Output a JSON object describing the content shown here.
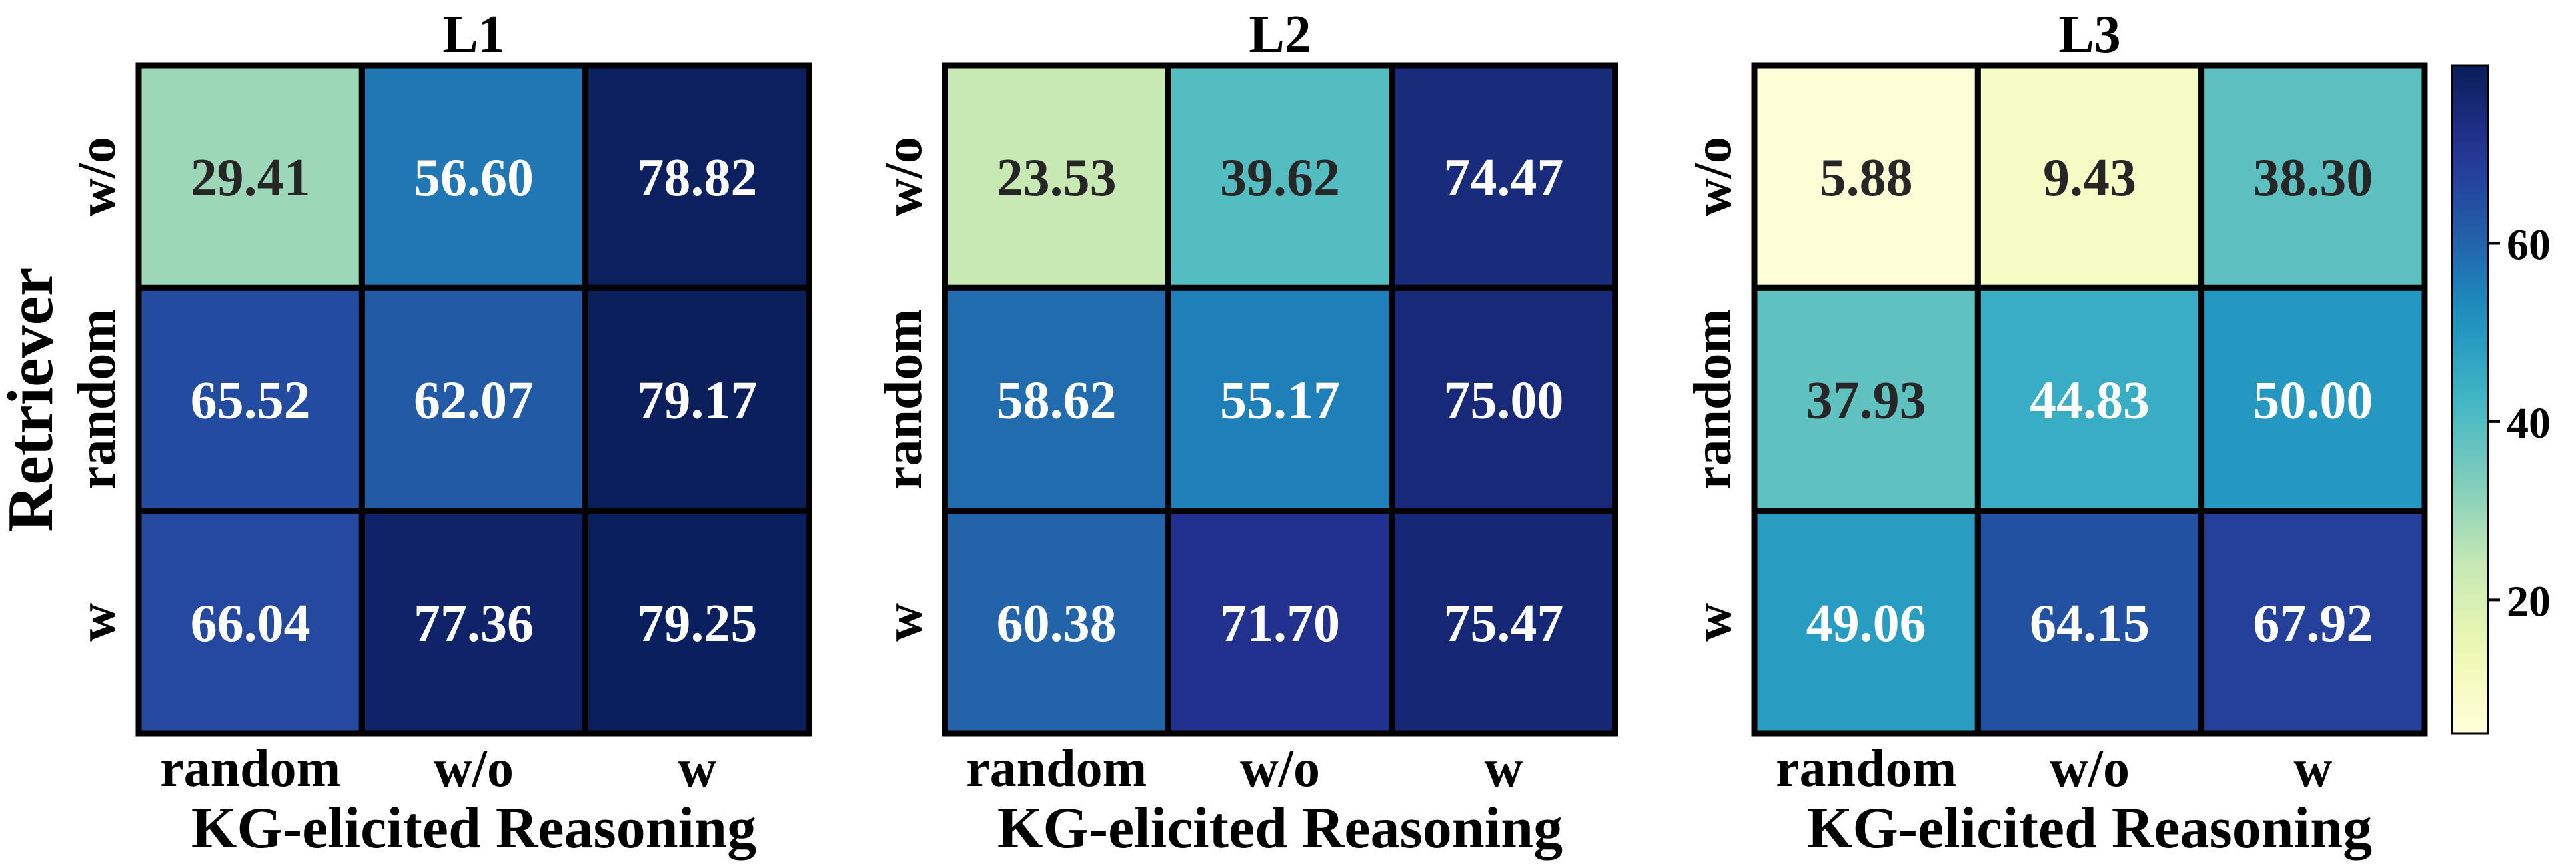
{
  "chart_data": {
    "type": "heatmap",
    "shared_ylabel": "Retriever",
    "colormap": "YlGnBu",
    "colorbar": {
      "range": [
        5,
        80
      ],
      "ticks": [
        20,
        40,
        60
      ],
      "tick_labels": [
        "20",
        "40",
        "60"
      ]
    },
    "panels": [
      {
        "title": "L1",
        "xlabel": "KG-elicited Reasoning",
        "x_categories": [
          "random",
          "w/o",
          "w"
        ],
        "y_categories": [
          "w/o",
          "random",
          "w"
        ],
        "values": [
          [
            29.41,
            56.6,
            78.82
          ],
          [
            65.52,
            62.07,
            79.17
          ],
          [
            66.04,
            77.36,
            79.25
          ]
        ],
        "value_labels": [
          [
            "29.41",
            "56.60",
            "78.82"
          ],
          [
            "65.52",
            "62.07",
            "79.17"
          ],
          [
            "66.04",
            "77.36",
            "79.25"
          ]
        ]
      },
      {
        "title": "L2",
        "xlabel": "KG-elicited Reasoning",
        "x_categories": [
          "random",
          "w/o",
          "w"
        ],
        "y_categories": [
          "w/o",
          "random",
          "w"
        ],
        "values": [
          [
            23.53,
            39.62,
            74.47
          ],
          [
            58.62,
            55.17,
            75.0
          ],
          [
            60.38,
            71.7,
            75.47
          ]
        ],
        "value_labels": [
          [
            "23.53",
            "39.62",
            "74.47"
          ],
          [
            "58.62",
            "55.17",
            "75.00"
          ],
          [
            "60.38",
            "71.70",
            "75.47"
          ]
        ]
      },
      {
        "title": "L3",
        "xlabel": "KG-elicited Reasoning",
        "x_categories": [
          "random",
          "w/o",
          "w"
        ],
        "y_categories": [
          "w/o",
          "random",
          "w"
        ],
        "values": [
          [
            5.88,
            9.43,
            38.3
          ],
          [
            37.93,
            44.83,
            50.0
          ],
          [
            49.06,
            64.15,
            67.92
          ]
        ],
        "value_labels": [
          [
            "5.88",
            "9.43",
            "38.30"
          ],
          [
            "37.93",
            "44.83",
            "50.00"
          ],
          [
            "49.06",
            "64.15",
            "67.92"
          ]
        ]
      }
    ]
  }
}
